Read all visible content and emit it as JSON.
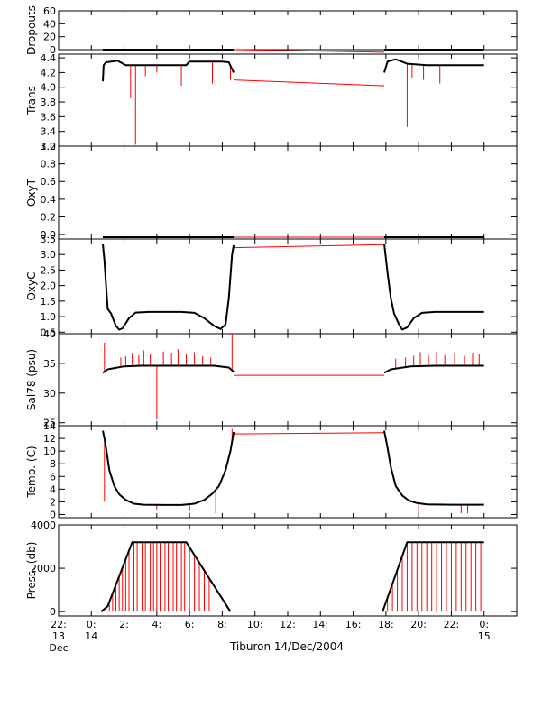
{
  "chart_data": {
    "type": "line",
    "xlabel": "Tiburon 14/Dec/2004",
    "x_range_hours": [
      -2,
      26
    ],
    "x_ticks": [
      {
        "hour": -2,
        "lines": [
          "22:",
          "13",
          "Dec"
        ]
      },
      {
        "hour": 0,
        "lines": [
          "0:",
          "14"
        ]
      },
      {
        "hour": 2,
        "lines": [
          "2:"
        ]
      },
      {
        "hour": 4,
        "lines": [
          "4:"
        ]
      },
      {
        "hour": 6,
        "lines": [
          "6:"
        ]
      },
      {
        "hour": 8,
        "lines": [
          "8:"
        ]
      },
      {
        "hour": 10,
        "lines": [
          "10:"
        ]
      },
      {
        "hour": 12,
        "lines": [
          "12:"
        ]
      },
      {
        "hour": 14,
        "lines": [
          "14:"
        ]
      },
      {
        "hour": 16,
        "lines": [
          "16:"
        ]
      },
      {
        "hour": 18,
        "lines": [
          "18:"
        ]
      },
      {
        "hour": 20,
        "lines": [
          "20:"
        ]
      },
      {
        "hour": 22,
        "lines": [
          "22:"
        ]
      },
      {
        "hour": 24,
        "lines": [
          "0:",
          "15"
        ]
      }
    ],
    "colors": {
      "primary": "#000000",
      "secondary": "#ff0000"
    },
    "panels": [
      {
        "name": "dropouts",
        "ylabel": "Dropouts",
        "ylim": [
          0,
          60
        ],
        "yticks": [
          "0",
          "20",
          "40",
          "60"
        ],
        "ytick_values": [
          0,
          20,
          40,
          60
        ],
        "black_segments": [
          [
            [
              0.7,
              0
            ],
            [
              8.7,
              0
            ]
          ],
          [
            [
              17.9,
              0
            ],
            [
              24,
              0
            ]
          ]
        ],
        "red_segments": [
          [
            [
              8.7,
              0
            ],
            [
              17.9,
              -4
            ]
          ]
        ]
      },
      {
        "name": "trans",
        "ylabel": "Trans",
        "ylim": [
          3.2,
          4.45
        ],
        "yticks": [
          "3.2",
          "3.4",
          "3.6",
          "3.8",
          "4.0",
          "4.2",
          "4.4"
        ],
        "ytick_values": [
          3.2,
          3.4,
          3.6,
          3.8,
          4.0,
          4.2,
          4.4
        ],
        "black_segments": [
          [
            [
              0.7,
              4.08
            ],
            [
              0.75,
              4.3
            ],
            [
              0.9,
              4.34
            ],
            [
              1.6,
              4.36
            ],
            [
              2.1,
              4.3
            ],
            [
              3.0,
              4.3
            ],
            [
              4.5,
              4.3
            ],
            [
              5.8,
              4.3
            ],
            [
              6.0,
              4.35
            ],
            [
              7.0,
              4.35
            ],
            [
              8.0,
              4.35
            ],
            [
              8.4,
              4.34
            ],
            [
              8.7,
              4.2
            ]
          ],
          [
            [
              17.9,
              4.2
            ],
            [
              18.1,
              4.35
            ],
            [
              18.6,
              4.38
            ],
            [
              19.3,
              4.32
            ],
            [
              20.5,
              4.3
            ],
            [
              22.0,
              4.3
            ],
            [
              24,
              4.3
            ]
          ]
        ],
        "red_segments": [
          [
            [
              8.7,
              4.1
            ],
            [
              17.9,
              4.02
            ]
          ]
        ],
        "spikes": [
          {
            "x": 2.4,
            "y": 3.85
          },
          {
            "x": 2.7,
            "y": 3.22
          },
          {
            "x": 3.3,
            "y": 4.15
          },
          {
            "x": 4.0,
            "y": 4.2
          },
          {
            "x": 5.5,
            "y": 4.02
          },
          {
            "x": 7.4,
            "y": 4.05
          },
          {
            "x": 8.5,
            "y": 4.1
          },
          {
            "x": 19.3,
            "y": 3.46
          },
          {
            "x": 19.6,
            "y": 4.12
          },
          {
            "x": 20.3,
            "y": 4.1
          },
          {
            "x": 21.3,
            "y": 4.05
          }
        ]
      },
      {
        "name": "oxyt",
        "ylabel": "OxyT",
        "ylim": [
          -0.05,
          1.0
        ],
        "yticks": [
          "0.0",
          "0.2",
          "0.4",
          "0.6",
          "0.8",
          "1.0"
        ],
        "ytick_values": [
          0,
          0.2,
          0.4,
          0.6,
          0.8,
          1.0
        ],
        "black_segments": [
          [
            [
              0.7,
              -0.03
            ],
            [
              8.7,
              -0.03
            ]
          ],
          [
            [
              17.9,
              -0.03
            ],
            [
              24,
              -0.03
            ]
          ]
        ],
        "red_segments": [
          [
            [
              8.7,
              -0.03
            ],
            [
              17.9,
              -0.03
            ]
          ]
        ]
      },
      {
        "name": "oxyc",
        "ylabel": "OxyC",
        "ylim": [
          0.45,
          3.5
        ],
        "yticks": [
          "0.5",
          "1.0",
          "1.5",
          "2.0",
          "2.5",
          "3.0",
          "3.5"
        ],
        "ytick_values": [
          0.5,
          1.0,
          1.5,
          2.0,
          2.5,
          3.0,
          3.5
        ],
        "black_segments": [
          [
            [
              0.7,
              3.35
            ],
            [
              0.8,
              2.8
            ],
            [
              0.9,
              2.0
            ],
            [
              1.0,
              1.25
            ],
            [
              1.2,
              1.1
            ],
            [
              1.5,
              0.7
            ],
            [
              1.7,
              0.58
            ],
            [
              1.9,
              0.62
            ],
            [
              2.3,
              0.95
            ],
            [
              2.7,
              1.13
            ],
            [
              3.5,
              1.15
            ],
            [
              5.5,
              1.15
            ],
            [
              6.3,
              1.12
            ],
            [
              6.9,
              0.95
            ],
            [
              7.5,
              0.7
            ],
            [
              7.9,
              0.6
            ],
            [
              8.2,
              0.75
            ],
            [
              8.4,
              1.6
            ],
            [
              8.6,
              3.0
            ],
            [
              8.7,
              3.3
            ]
          ],
          [
            [
              17.9,
              3.35
            ],
            [
              18.1,
              2.4
            ],
            [
              18.3,
              1.6
            ],
            [
              18.5,
              1.1
            ],
            [
              18.8,
              0.75
            ],
            [
              19.0,
              0.58
            ],
            [
              19.3,
              0.65
            ],
            [
              19.7,
              0.95
            ],
            [
              20.2,
              1.12
            ],
            [
              21.0,
              1.15
            ],
            [
              24,
              1.15
            ]
          ]
        ],
        "red_segments": [
          [
            [
              8.7,
              3.22
            ],
            [
              17.9,
              3.32
            ]
          ]
        ]
      },
      {
        "name": "salinity",
        "ylabel": "Sal78 (psu)",
        "ylim": [
          24.5,
          40
        ],
        "yticks": [
          "25",
          "30",
          "35",
          "40"
        ],
        "ytick_values": [
          25,
          30,
          35,
          40
        ],
        "black_segments": [
          [
            [
              0.7,
              33.4
            ],
            [
              1.0,
              34.0
            ],
            [
              2.0,
              34.5
            ],
            [
              3.0,
              34.6
            ],
            [
              6.0,
              34.6
            ],
            [
              7.5,
              34.6
            ],
            [
              8.4,
              34.3
            ],
            [
              8.7,
              33.6
            ]
          ],
          [
            [
              17.9,
              33.4
            ],
            [
              18.3,
              34.0
            ],
            [
              19.5,
              34.5
            ],
            [
              21.0,
              34.6
            ],
            [
              24,
              34.6
            ]
          ]
        ],
        "red_segments": [
          [
            [
              8.7,
              33.0
            ],
            [
              17.9,
              33.0
            ]
          ]
        ],
        "spikes": [
          {
            "x": 0.8,
            "y": 38.5
          },
          {
            "x": 1.8,
            "y": 36.0
          },
          {
            "x": 2.1,
            "y": 36.2
          },
          {
            "x": 2.5,
            "y": 36.8
          },
          {
            "x": 2.9,
            "y": 36.4
          },
          {
            "x": 3.2,
            "y": 37.2
          },
          {
            "x": 3.6,
            "y": 36.6
          },
          {
            "x": 4.0,
            "y": 25.5
          },
          {
            "x": 4.4,
            "y": 37.0
          },
          {
            "x": 4.9,
            "y": 36.8
          },
          {
            "x": 5.3,
            "y": 37.4
          },
          {
            "x": 5.8,
            "y": 36.5
          },
          {
            "x": 6.3,
            "y": 36.9
          },
          {
            "x": 6.8,
            "y": 36.2
          },
          {
            "x": 7.3,
            "y": 36.0
          },
          {
            "x": 8.6,
            "y": 40.0
          },
          {
            "x": 8.9,
            "y": 37.5
          },
          {
            "x": 18.6,
            "y": 35.8
          },
          {
            "x": 19.2,
            "y": 36.0
          },
          {
            "x": 19.7,
            "y": 36.3
          },
          {
            "x": 20.1,
            "y": 36.9
          },
          {
            "x": 20.6,
            "y": 36.4
          },
          {
            "x": 21.1,
            "y": 37.0
          },
          {
            "x": 21.6,
            "y": 36.4
          },
          {
            "x": 22.2,
            "y": 36.8
          },
          {
            "x": 22.8,
            "y": 36.3
          },
          {
            "x": 23.3,
            "y": 36.8
          },
          {
            "x": 23.7,
            "y": 36.5
          }
        ]
      },
      {
        "name": "temperature",
        "ylabel": "Temp. (C)",
        "ylim": [
          -0.5,
          14
        ],
        "yticks": [
          "0",
          "2",
          "4",
          "6",
          "8",
          "10",
          "12",
          "14"
        ],
        "ytick_values": [
          0,
          2,
          4,
          6,
          8,
          10,
          12,
          14
        ],
        "black_segments": [
          [
            [
              0.7,
              13.2
            ],
            [
              0.8,
              12.0
            ],
            [
              0.9,
              10.5
            ],
            [
              1.1,
              7.0
            ],
            [
              1.4,
              4.5
            ],
            [
              1.7,
              3.2
            ],
            [
              2.1,
              2.3
            ],
            [
              2.6,
              1.7
            ],
            [
              3.2,
              1.55
            ],
            [
              4.5,
              1.5
            ],
            [
              5.5,
              1.5
            ],
            [
              6.3,
              1.7
            ],
            [
              6.9,
              2.3
            ],
            [
              7.4,
              3.3
            ],
            [
              7.8,
              4.5
            ],
            [
              8.2,
              7.0
            ],
            [
              8.5,
              10.0
            ],
            [
              8.7,
              13.0
            ]
          ],
          [
            [
              17.9,
              13.2
            ],
            [
              18.1,
              10.5
            ],
            [
              18.3,
              7.5
            ],
            [
              18.6,
              4.5
            ],
            [
              19.0,
              3.0
            ],
            [
              19.4,
              2.2
            ],
            [
              19.9,
              1.8
            ],
            [
              20.5,
              1.6
            ],
            [
              22.0,
              1.55
            ],
            [
              24,
              1.55
            ]
          ]
        ],
        "red_segments": [
          [
            [
              8.7,
              12.7
            ],
            [
              17.9,
              12.9
            ]
          ]
        ],
        "spikes": [
          {
            "x": 0.8,
            "y": 2.0
          },
          {
            "x": 4.0,
            "y": 0.8
          },
          {
            "x": 6.0,
            "y": 0.5
          },
          {
            "x": 7.6,
            "y": 0.2
          },
          {
            "x": 8.6,
            "y": 13.5
          },
          {
            "x": 20.0,
            "y": 0.2
          },
          {
            "x": 22.6,
            "y": 0.2
          },
          {
            "x": 23.0,
            "y": 0.2
          }
        ]
      },
      {
        "name": "pressure",
        "ylabel": "Press. (db)",
        "ylim": [
          -200,
          4000
        ],
        "yticks": [
          "0",
          "2000",
          "4000"
        ],
        "ytick_values": [
          0,
          2000,
          4000
        ],
        "black_segments": [
          [
            [
              0.6,
              0
            ],
            [
              1.0,
              250
            ],
            [
              2.5,
              3200
            ],
            [
              5.8,
              3200
            ],
            [
              8.5,
              0
            ]
          ],
          [
            [
              17.8,
              0
            ],
            [
              19.3,
              3200
            ],
            [
              24,
              3200
            ]
          ]
        ],
        "red_segments": [],
        "spikes_down": [
          0.9,
          1.1,
          1.3,
          1.5,
          1.7,
          1.9,
          2.1,
          2.3,
          2.6,
          2.8,
          3.1,
          3.3,
          3.6,
          3.8,
          4.0,
          4.2,
          4.5,
          4.7,
          5.0,
          5.2,
          5.5,
          5.7,
          6.0,
          6.3,
          6.6,
          6.9,
          7.2,
          18.1,
          18.4,
          18.7,
          19.0,
          19.3,
          19.6,
          19.9,
          20.2,
          20.5,
          20.8,
          21.1,
          21.4,
          21.7,
          22.0,
          22.3,
          22.6,
          22.9,
          23.2,
          23.5,
          23.8
        ]
      }
    ]
  }
}
